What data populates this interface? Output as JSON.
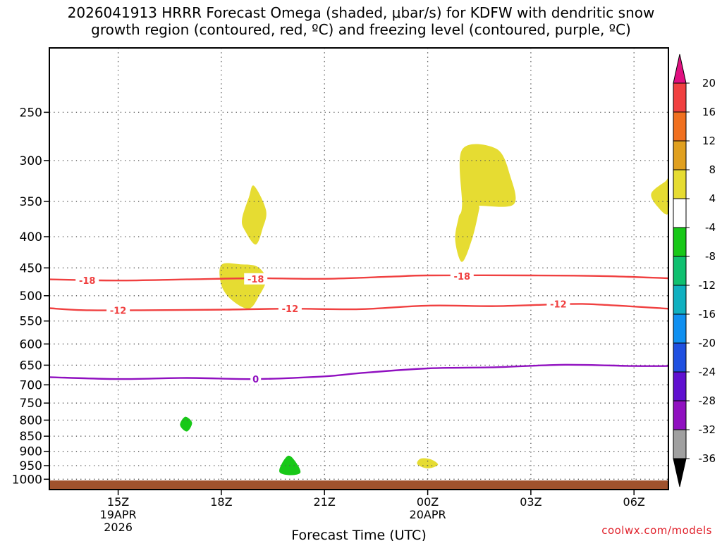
{
  "title": {
    "line1": "2026041913 HRRR Forecast Omega (shaded, μbar/s) for KDFW with dendritic snow",
    "line2": "growth region (contoured, red, ºC) and freezing level (contoured, purple, ºC)"
  },
  "credit": "coolwx.com/models",
  "chart_data": {
    "type": "contour",
    "xlabel": "Forecast Time (UTC)",
    "x_range_hours": [
      13.0,
      31.0
    ],
    "y_axis": {
      "scale": "log-pressure",
      "range_hPa": [
        1040,
        196
      ],
      "ticks": [
        250,
        300,
        350,
        400,
        450,
        500,
        550,
        600,
        650,
        700,
        750,
        800,
        850,
        900,
        950,
        1000
      ]
    },
    "x_ticks": [
      {
        "hour": 15,
        "label": "15Z",
        "sub": [
          "19APR",
          "2026"
        ]
      },
      {
        "hour": 18,
        "label": "18Z",
        "sub": []
      },
      {
        "hour": 21,
        "label": "21Z",
        "sub": []
      },
      {
        "hour": 24,
        "label": "00Z",
        "sub": [
          "20APR"
        ]
      },
      {
        "hour": 27,
        "label": "03Z",
        "sub": []
      },
      {
        "hour": 30,
        "label": "06Z",
        "sub": []
      }
    ],
    "grid": true,
    "surface": {
      "color": "#a0522d",
      "pressure_hPa": 1040,
      "top_hPa": 1005
    },
    "contours": [
      {
        "name": "-18",
        "label": "-18",
        "color": "#f04040",
        "points": [
          [
            13,
            470
          ],
          [
            15,
            472
          ],
          [
            17,
            470
          ],
          [
            19,
            468
          ],
          [
            21,
            469
          ],
          [
            23,
            465
          ],
          [
            24,
            463
          ],
          [
            27,
            463
          ],
          [
            29,
            464
          ],
          [
            31,
            468
          ]
        ],
        "label_at": [
          [
            14.1,
            472
          ],
          [
            19.0,
            469
          ],
          [
            25.0,
            464
          ]
        ]
      },
      {
        "name": "-12",
        "label": "-12",
        "color": "#f04040",
        "points": [
          [
            13,
            524
          ],
          [
            14,
            528
          ],
          [
            16,
            528
          ],
          [
            18,
            527
          ],
          [
            20,
            525
          ],
          [
            22,
            526
          ],
          [
            24,
            519
          ],
          [
            26,
            520
          ],
          [
            28,
            516
          ],
          [
            29,
            517
          ],
          [
            31,
            525
          ]
        ],
        "label_at": [
          [
            15.0,
            528
          ],
          [
            20.0,
            525
          ],
          [
            27.8,
            516
          ]
        ]
      },
      {
        "name": "0",
        "label": "0",
        "color": "#9010c0",
        "points": [
          [
            13,
            680
          ],
          [
            15,
            685
          ],
          [
            17,
            682
          ],
          [
            19,
            685
          ],
          [
            21,
            678
          ],
          [
            22,
            670
          ],
          [
            24,
            658
          ],
          [
            26,
            655
          ],
          [
            28,
            649
          ],
          [
            30,
            652
          ],
          [
            31,
            652
          ]
        ],
        "label_at": [
          [
            19.0,
            685
          ]
        ]
      }
    ],
    "shaded": [
      {
        "value_band": "4 to 8",
        "color": "#e6dc32",
        "polygon": [
          [
            18.95,
            330
          ],
          [
            19.3,
            362
          ],
          [
            19.2,
            388
          ],
          [
            19.0,
            412
          ],
          [
            18.7,
            392
          ],
          [
            18.6,
            375
          ],
          [
            18.8,
            345
          ]
        ]
      },
      {
        "value_band": "4 to 8",
        "color": "#e6dc32",
        "polygon": [
          [
            18.0,
            445
          ],
          [
            18.55,
            444
          ],
          [
            19.05,
            448
          ],
          [
            19.3,
            470
          ],
          [
            19.1,
            500
          ],
          [
            18.8,
            525
          ],
          [
            18.3,
            508
          ],
          [
            18.0,
            480
          ]
        ]
      },
      {
        "value_band": "4 to 8",
        "color": "#e6dc32",
        "polygon": [
          [
            25.0,
            288
          ],
          [
            26.0,
            287
          ],
          [
            26.4,
            318
          ],
          [
            26.5,
            354
          ],
          [
            25.5,
            356
          ],
          [
            25.5,
            360
          ],
          [
            25.3,
            402
          ],
          [
            25.0,
            440
          ],
          [
            24.8,
            405
          ],
          [
            24.9,
            372
          ],
          [
            25.0,
            355
          ]
        ]
      },
      {
        "value_band": "4 to 8",
        "color": "#e6dc32",
        "polygon": [
          [
            30.9,
            325
          ],
          [
            31.0,
            324
          ],
          [
            31.0,
            366
          ],
          [
            30.7,
            358
          ],
          [
            30.5,
            340
          ]
        ]
      },
      {
        "value_band": "4 to 8",
        "color": "#e6dc32",
        "polygon": [
          [
            23.8,
            925
          ],
          [
            24.1,
            928
          ],
          [
            24.3,
            947
          ],
          [
            24.0,
            960
          ],
          [
            23.7,
            945
          ]
        ]
      },
      {
        "value_band": "-8 to -4",
        "color": "#18c818",
        "polygon": [
          [
            16.95,
            790
          ],
          [
            17.15,
            808
          ],
          [
            17.0,
            835
          ],
          [
            16.8,
            815
          ]
        ]
      },
      {
        "value_band": "-8 to -4",
        "color": "#18c818",
        "polygon": [
          [
            19.95,
            915
          ],
          [
            20.15,
            935
          ],
          [
            20.3,
            975
          ],
          [
            20.0,
            985
          ],
          [
            19.7,
            975
          ],
          [
            19.75,
            945
          ]
        ]
      }
    ],
    "colorbar": {
      "labels": [
        "20",
        "16",
        "12",
        "8",
        "4",
        "-4",
        "-8",
        "-12",
        "-16",
        "-20",
        "-24",
        "-28",
        "-32",
        "-36"
      ],
      "colors": [
        "#e01080",
        "#f04040",
        "#f07020",
        "#e0a020",
        "#e6dc32",
        "#ffffff",
        "#18c818",
        "#10c070",
        "#10b0c0",
        "#1090f0",
        "#2050e0",
        "#6010d0",
        "#9010c0",
        "#a0a0a0",
        "#000000"
      ]
    }
  }
}
